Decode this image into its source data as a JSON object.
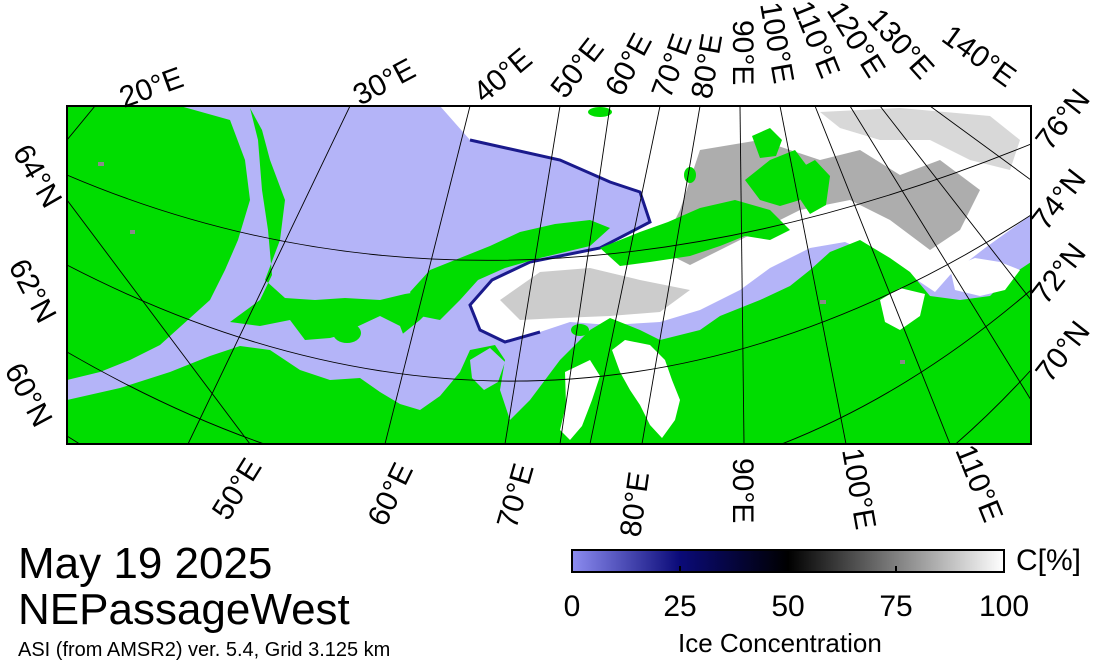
{
  "map": {
    "title_date": "May 19 2025",
    "title_region": "NEPassageWest",
    "subtitle": "ASI (from AMSR2) ver. 5.4,  Grid 3.125 km",
    "colors": {
      "land": "#00dd00",
      "open_water": "#b4b4f8",
      "frame": "#000000",
      "no_data": "#8a8a8a",
      "ice": "#ffffff"
    },
    "top_lon_labels": [
      "20°E",
      "30°E",
      "40°E",
      "50°E",
      "60°E",
      "70°E",
      "80°E",
      "90°E",
      "100°E",
      "110°E",
      "120°E",
      "130°E",
      "140°E"
    ],
    "bottom_lon_labels": [
      "50°E",
      "60°E",
      "70°E",
      "80°E",
      "90°E",
      "100°E",
      "110°E"
    ],
    "left_lat_labels": [
      "64°N",
      "62°N",
      "60°N"
    ],
    "right_lat_labels": [
      "76°N",
      "74°N",
      "72°N",
      "70°N"
    ]
  },
  "colorbar": {
    "unit": "C[%]",
    "title": "Ice Concentration",
    "ticks": [
      "0",
      "25",
      "50",
      "75",
      "100"
    ],
    "stops": [
      {
        "value": 0,
        "color": "#8c8cf0"
      },
      {
        "value": 25,
        "color": "#0a0a78"
      },
      {
        "value": 50,
        "color": "#000000"
      },
      {
        "value": 100,
        "color": "#ffffff"
      }
    ]
  }
}
